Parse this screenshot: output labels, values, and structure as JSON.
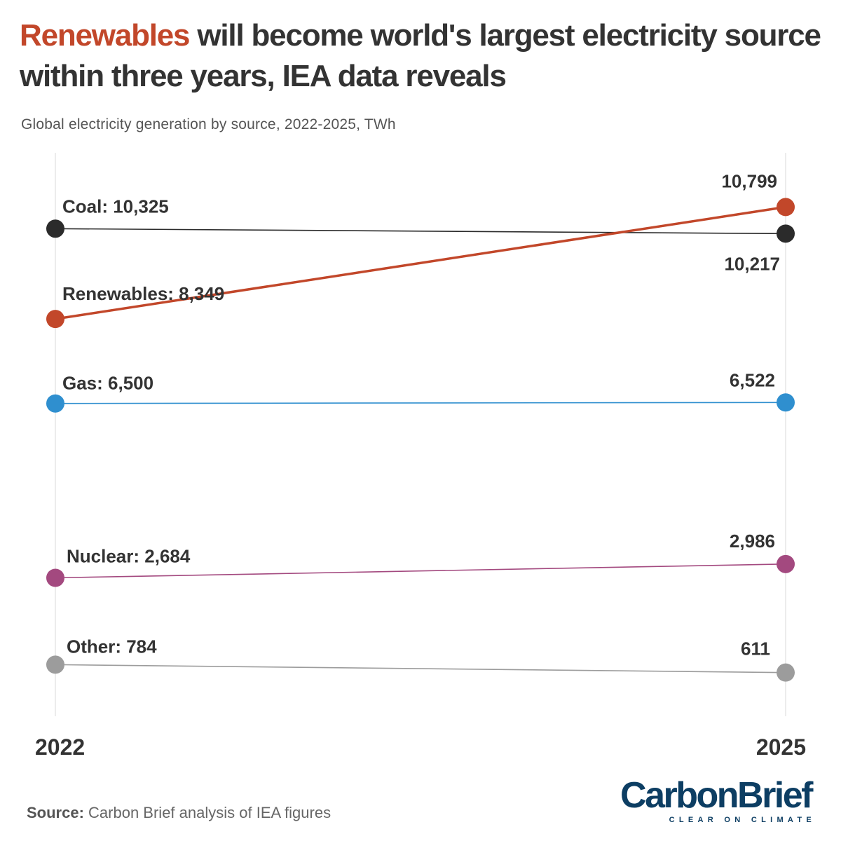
{
  "header": {
    "title_highlight": "Renewables",
    "title_rest": " will become world's largest electricity source within three years, IEA data reveals",
    "subtitle": "Global electricity generation by source, 2022-2025, TWh"
  },
  "footer": {
    "source_label": "Source:",
    "source_text": " Carbon Brief analysis of IEA figures",
    "logo_main": "CarbonBrief",
    "logo_tagline": "CLEAR ON CLIMATE"
  },
  "chart_data": {
    "type": "line",
    "x": [
      "2022",
      "2025"
    ],
    "ylim": [
      0,
      11000
    ],
    "grid": false,
    "legend": "none",
    "series": [
      {
        "name": "Coal",
        "values": [
          10325,
          10217
        ],
        "labels": [
          "Coal: 10,325",
          "10,217"
        ],
        "color": "#2b2b2b"
      },
      {
        "name": "Renewables",
        "values": [
          8349,
          10799
        ],
        "labels": [
          "Renewables: 8,349",
          "10,799"
        ],
        "color": "#c2472a"
      },
      {
        "name": "Gas",
        "values": [
          6500,
          6522
        ],
        "labels": [
          "Gas: 6,500",
          "6,522"
        ],
        "color": "#2f8fcf"
      },
      {
        "name": "Nuclear",
        "values": [
          2684,
          2986
        ],
        "labels": [
          "Nuclear: 2,684",
          "2,986"
        ],
        "color": "#a3497f"
      },
      {
        "name": "Other",
        "values": [
          784,
          611
        ],
        "labels": [
          "Other: 784",
          "611"
        ],
        "color": "#9c9c9c"
      }
    ]
  }
}
